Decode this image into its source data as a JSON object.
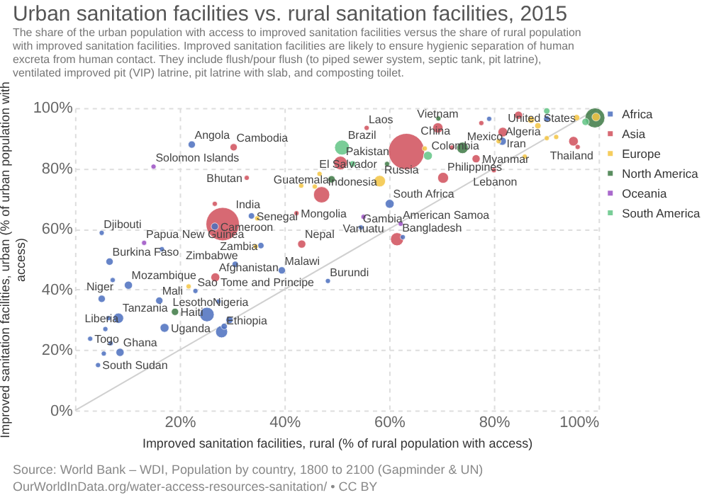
{
  "chart_data": {
    "type": "bubble",
    "title": "Urban sanitation facilities vs. rural sanitation facilities, 2015",
    "subtitle": "The share of the urban population with access to improved sanitation facilities versus the share of rural population with improved sanitation facilities. Improved sanitation facilities are likely to ensure hygienic separation of human excreta from human contact. They include flush/pour flush (to piped sewer system, septic tank, pit latrine), ventilated improved pit (VIP) latrine, pit latrine with slab, and composting toilet.",
    "xlabel": "Improved sanitation facilities, rural (% of rural population with access)",
    "ylabel": "Improved sanitation facilities, urban (% of urban population with access)",
    "xlim": [
      0,
      100
    ],
    "ylim": [
      0,
      100
    ],
    "xticks": [
      {
        "value": 0,
        "label": null
      },
      {
        "value": 20,
        "label": "20%"
      },
      {
        "value": 40,
        "label": "40%"
      },
      {
        "value": 60,
        "label": "60%"
      },
      {
        "value": 80,
        "label": "80%"
      },
      {
        "value": 100,
        "label": "100%"
      }
    ],
    "yticks": [
      {
        "value": 0,
        "label": "0%"
      },
      {
        "value": 20,
        "label": "20%"
      },
      {
        "value": 40,
        "label": "40%"
      },
      {
        "value": 60,
        "label": "60%"
      },
      {
        "value": 80,
        "label": "80%"
      },
      {
        "value": 100,
        "label": "100%"
      }
    ],
    "grid": true,
    "legend": "top right",
    "marker": "circle",
    "series": [
      {
        "type": "line",
        "marker": "none",
        "color": "#d0d0d0",
        "x": [
          0,
          100
        ],
        "values": [
          0,
          100
        ]
      },
      {
        "name": "Africa",
        "color": "#4c6fbf",
        "x": [
          22.3,
          5.1,
          6.6,
          30.6,
          39.5,
          10.2,
          48.3,
          23,
          5.1,
          16.1,
          27.4,
          25.2,
          8.3,
          5.8,
          17.1,
          28,
          2.9,
          8.6,
          4.4,
          33.7,
          26.7,
          35.5,
          60.1,
          54.6,
          81.6,
          29.5,
          28.5,
          7.2,
          16.6,
          6.4,
          6.8,
          5.5,
          62.6,
          79.1,
          90.1
        ],
        "values": [
          87.9,
          58.7,
          49.2,
          48.3,
          46.3,
          41.4,
          42.8,
          39.5,
          36.9,
          36.3,
          36,
          31.7,
          30.5,
          26.9,
          27.3,
          26,
          23.7,
          19.2,
          15,
          64.3,
          60.8,
          54.5,
          68.3,
          60.5,
          89,
          29.9,
          27.8,
          43.1,
          53.3,
          30.5,
          22.2,
          18.8,
          57.3,
          96.4,
          96.4
        ],
        "sizes": [
          0.04,
          0.02,
          0.04,
          0.03,
          0.04,
          0.05,
          0.02,
          0.02,
          0.04,
          0.04,
          0.02,
          0.16,
          0.08,
          0.02,
          0.06,
          0.11,
          0.02,
          0.05,
          0.02,
          0.03,
          0.04,
          0.03,
          0.06,
          0.02,
          0.05,
          0.04,
          0.03,
          0.02,
          0.02,
          0.02,
          0.02,
          0.02,
          0.02,
          0.02,
          0.03
        ]
      },
      {
        "name": "Asia",
        "color": "#d14f5b",
        "x": [
          30.3,
          32.8,
          28.2,
          43.3,
          26.8,
          63.3,
          50.7,
          47.1,
          42.3,
          61.5,
          70.3,
          76.6,
          80,
          55.7,
          69.3,
          81.7,
          95.2,
          26.7,
          84.7,
          96,
          77.6,
          72
        ],
        "values": [
          87,
          76.9,
          61.6,
          55,
          44,
          85.6,
          81.8,
          71.3,
          65.2,
          56.6,
          76.9,
          83.2,
          79.4,
          93.4,
          93.4,
          92,
          89,
          68.3,
          97.6,
          87.1,
          95,
          86.9
        ],
        "sizes": [
          0.04,
          0.02,
          0.85,
          0.05,
          0.06,
          1,
          0.14,
          0.2,
          0.02,
          0.13,
          0.09,
          0.05,
          0.02,
          0.02,
          0.08,
          0.07,
          0.07,
          0.02,
          0.05,
          0.02,
          0.02,
          0.02
        ]
      },
      {
        "name": "Europe",
        "color": "#f4c543",
        "x": [
          58.2,
          43.2,
          45.8,
          46.7,
          34.8,
          34.5,
          21.7,
          66.8,
          87.1,
          88.4,
          91.9,
          85.9,
          80.9,
          99.5,
          95.8,
          90.1
        ],
        "values": [
          75.8,
          74.3,
          74,
          78.2,
          63.5,
          54.2,
          41,
          86.6,
          96.1,
          94.1,
          90.4,
          83.9,
          89,
          97,
          96.8,
          90
        ],
        "sizes": [
          0.1,
          0.02,
          0.02,
          0.02,
          0.02,
          0.02,
          0.02,
          0.02,
          0.04,
          0.03,
          0.02,
          0.02,
          0.02,
          0.05,
          0.03,
          0.02
        ]
      },
      {
        "name": "North America",
        "color": "#3e7a45",
        "x": [
          19.1,
          49,
          59.6,
          74,
          99.3,
          69.4
        ],
        "values": [
          32.6,
          76.4,
          81.5,
          86.8,
          96.7,
          96.5
        ],
        "sizes": [
          0.04,
          0.04,
          0.02,
          0.1,
          0.3,
          0.02
        ]
      },
      {
        "name": "Oceania",
        "color": "#9b4fc4",
        "x": [
          15,
          13.2,
          55.1,
          62.2
        ],
        "values": [
          80.6,
          55.4,
          64,
          61.7
        ],
        "sizes": [
          0.02,
          0.02,
          0.02,
          0.02
        ]
      },
      {
        "name": "South America",
        "color": "#62c585",
        "x": [
          51,
          67.4,
          53,
          90.1,
          97.5
        ],
        "values": [
          86.9,
          84.2,
          81.5,
          99,
          95.4
        ],
        "sizes": [
          0.17,
          0.06,
          0.03,
          0.03,
          0.04
        ]
      }
    ],
    "annotations": [
      {
        "text": "Angola",
        "x": 22.3,
        "y": 87.9
      },
      {
        "text": "Cambodia",
        "x": 30.3,
        "y": 87
      },
      {
        "text": "Solomon Islands",
        "x": 15,
        "y": 80.6
      },
      {
        "text": "Bhutan",
        "x": 32.8,
        "y": 76.9
      },
      {
        "text": "India",
        "x": 28.2,
        "y": 61.6
      },
      {
        "text": "Cameroon",
        "x": 26.7,
        "y": 60.8
      },
      {
        "text": "Senegal",
        "x": 33.7,
        "y": 64.3
      },
      {
        "text": "Mongolia",
        "x": 42.3,
        "y": 65.2
      },
      {
        "text": "Djibouti",
        "x": 5.1,
        "y": 58.7
      },
      {
        "text": "Papua New Guinea",
        "x": 13.2,
        "y": 55.4
      },
      {
        "text": "Zambia",
        "x": 35.5,
        "y": 54.5
      },
      {
        "text": "Nepal",
        "x": 43.3,
        "y": 55
      },
      {
        "text": "Burkina Faso",
        "x": 6.6,
        "y": 49.2
      },
      {
        "text": "Zimbabwe",
        "x": 30.6,
        "y": 48.3
      },
      {
        "text": "Malawi",
        "x": 39.5,
        "y": 46.3
      },
      {
        "text": "Afghanistan",
        "x": 26.8,
        "y": 44
      },
      {
        "text": "Mozambique",
        "x": 10.2,
        "y": 41.4
      },
      {
        "text": "Burundi",
        "x": 48.3,
        "y": 42.8
      },
      {
        "text": "Sao Tome and Principe",
        "x": 23,
        "y": 39.5
      },
      {
        "text": "Niger",
        "x": 5.1,
        "y": 36.9
      },
      {
        "text": "Mali",
        "x": 16.1,
        "y": 36.3
      },
      {
        "text": "Lesotho",
        "x": 27.4,
        "y": 36
      },
      {
        "text": "Haiti",
        "x": 19.1,
        "y": 32.6
      },
      {
        "text": "Nigeria",
        "x": 25.2,
        "y": 31.7
      },
      {
        "text": "Tanzania",
        "x": 8.3,
        "y": 30.5
      },
      {
        "text": "Liberia",
        "x": 5.8,
        "y": 26.9
      },
      {
        "text": "Uganda",
        "x": 17.1,
        "y": 27.3
      },
      {
        "text": "Ethiopia",
        "x": 28,
        "y": 26
      },
      {
        "text": "Togo",
        "x": 2.9,
        "y": 23.7
      },
      {
        "text": "Ghana",
        "x": 8.6,
        "y": 19.2
      },
      {
        "text": "South Sudan",
        "x": 4.4,
        "y": 15
      },
      {
        "text": "China",
        "x": 63.3,
        "y": 85.6
      },
      {
        "text": "El Salvador",
        "x": 59.6,
        "y": 81.5
      },
      {
        "text": "Colombia",
        "x": 67.4,
        "y": 84.2
      },
      {
        "text": "Mexico",
        "x": 74,
        "y": 86.8
      },
      {
        "text": "Myanmar",
        "x": 76.6,
        "y": 83.2
      },
      {
        "text": "Russia",
        "x": 58.2,
        "y": 75.8
      },
      {
        "text": "Philippines",
        "x": 70.3,
        "y": 76.9
      },
      {
        "text": "Lebanon",
        "x": 80,
        "y": 79.4
      },
      {
        "text": "South Africa",
        "x": 60.1,
        "y": 68.3
      },
      {
        "text": "Vanuatu",
        "x": 55.1,
        "y": 64
      },
      {
        "text": "Gambia",
        "x": 54.6,
        "y": 60.5
      },
      {
        "text": "American Samoa",
        "x": 62.2,
        "y": 61.7
      },
      {
        "text": "Bangladesh",
        "x": 61.5,
        "y": 56.6
      },
      {
        "text": "Brazil",
        "x": 51,
        "y": 86.9
      },
      {
        "text": "Pakistan",
        "x": 50.7,
        "y": 81.8
      },
      {
        "text": "Guatemala",
        "x": 49,
        "y": 76.4
      },
      {
        "text": "Indonesia",
        "x": 47.1,
        "y": 71.3
      },
      {
        "text": "Laos",
        "x": 55.7,
        "y": 93.4
      },
      {
        "text": "Vietnam",
        "x": 69.3,
        "y": 93.4
      },
      {
        "text": "Iran",
        "x": 81.7,
        "y": 92
      },
      {
        "text": "Algeria",
        "x": 81.6,
        "y": 89
      },
      {
        "text": "Thailand",
        "x": 95.2,
        "y": 89
      },
      {
        "text": "United States",
        "x": 99.3,
        "y": 96.7
      },
      "Source: World Bank – WDI, Population by country, 1800 to 2100 (Gapminder & UN)",
      "OurWorldInData.org/water-access-resources-sanitation/ • CC BY"
    ]
  }
}
